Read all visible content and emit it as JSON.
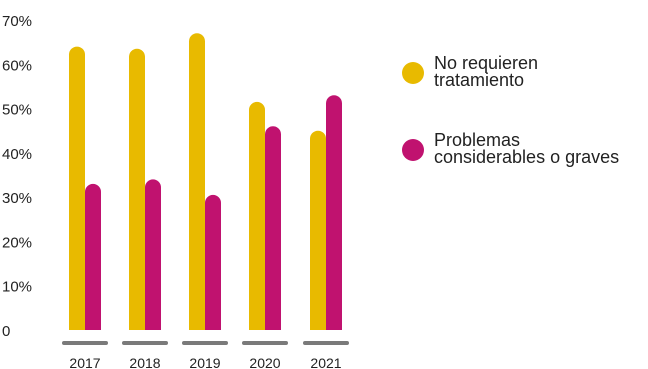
{
  "chart_data": {
    "type": "bar",
    "categories": [
      "2017",
      "2018",
      "2019",
      "2020",
      "2021"
    ],
    "series": [
      {
        "name": "No requieren tratamiento",
        "values": [
          64,
          63.5,
          67,
          51.5,
          45
        ],
        "color": "#e8ba00"
      },
      {
        "name": "Problemas considerables o graves",
        "values": [
          33,
          34,
          30.5,
          46,
          53
        ],
        "color": "#c0126f"
      }
    ],
    "y_ticks": [
      "0",
      "10%",
      "20%",
      "30%",
      "40%",
      "50%",
      "60%",
      "70%"
    ],
    "ylim": [
      0,
      70
    ],
    "grid": false,
    "legend_position": "right",
    "title": "",
    "xlabel": "",
    "ylabel": ""
  },
  "legend": {
    "items": [
      {
        "line1": "No requieren",
        "line2": "tratamiento",
        "color": "#e8ba00"
      },
      {
        "line1": "Problemas",
        "line2": "considerables o graves",
        "color": "#c0126f"
      }
    ]
  }
}
